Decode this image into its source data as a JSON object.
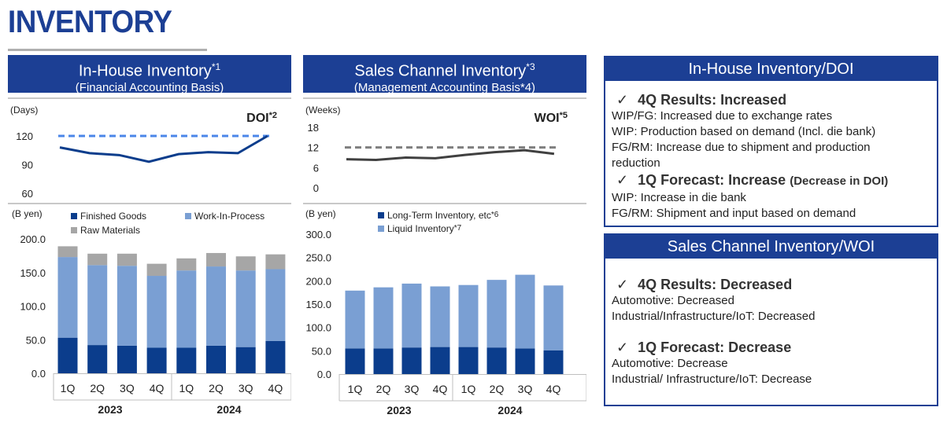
{
  "page_title": "INVENTORY",
  "panels": {
    "inhouse": {
      "title": "In-House Inventory",
      "title_sup": "*1",
      "subtitle": "(Financial Accounting Basis)"
    },
    "sales": {
      "title": "Sales Channel Inventory",
      "title_sup": "*3",
      "subtitle": "(Management Accounting Basis*4)"
    }
  },
  "colors": {
    "navy": "#1c3f94",
    "finished_goods": "#0b3d8c",
    "wip": "#7a9fd3",
    "raw_materials": "#a6a6a6",
    "woi_line": "#404040",
    "dashed_gray": "#7f7f7f",
    "dashed_blue": "#4a86e8"
  },
  "chart_data": [
    {
      "type": "line",
      "label": "DOI",
      "label_sup": "*2",
      "ylabel": "(Days)",
      "yticks": [
        "60",
        "90",
        "120"
      ],
      "ylim": [
        60,
        120
      ],
      "x": [
        "1Q 2023",
        "2Q 2023",
        "3Q 2023",
        "4Q 2023",
        "1Q 2024",
        "2Q 2024",
        "3Q 2024",
        "4Q 2024"
      ],
      "series": [
        {
          "values": [
            108,
            102,
            100,
            93,
            101,
            103,
            102,
            120
          ]
        }
      ],
      "reference_line": 120
    },
    {
      "type": "bar",
      "stacked": true,
      "ylabel": "(B yen)",
      "yticks": [
        "0.0",
        "50.0",
        "100.0",
        "150.0",
        "200.0"
      ],
      "ylim": [
        0,
        200
      ],
      "categories": [
        "1Q",
        "2Q",
        "3Q",
        "4Q",
        "1Q",
        "2Q",
        "3Q",
        "4Q"
      ],
      "groups": [
        "2023",
        "2024"
      ],
      "series": [
        {
          "name": "Finished Goods",
          "values": [
            53,
            42,
            41,
            38,
            38,
            41,
            39,
            48
          ]
        },
        {
          "name": "Work-In-Process",
          "values": [
            120,
            119,
            119,
            107,
            115,
            118,
            114,
            107
          ]
        },
        {
          "name": "Raw Materials",
          "values": [
            16,
            17,
            18,
            18,
            18,
            20,
            21,
            22
          ]
        }
      ]
    },
    {
      "type": "line",
      "label": "WOI",
      "label_sup": "*5",
      "ylabel": "(Weeks)",
      "yticks": [
        "0",
        "6",
        "12",
        "18"
      ],
      "ylim": [
        0,
        18
      ],
      "x": [
        "1Q 2023",
        "2Q 2023",
        "3Q 2023",
        "4Q 2023",
        "1Q 2024",
        "2Q 2024",
        "3Q 2024",
        "4Q 2024"
      ],
      "series": [
        {
          "values": [
            8.5,
            8.3,
            9.0,
            8.8,
            9.8,
            10.6,
            11.2,
            10.1
          ]
        }
      ],
      "reference_line": 12
    },
    {
      "type": "bar",
      "stacked": true,
      "ylabel": "(B yen)",
      "yticks": [
        "0.0",
        "50.0",
        "100.0",
        "150.0",
        "200.0",
        "250.0",
        "300.0"
      ],
      "ylim": [
        0,
        300
      ],
      "categories": [
        "1Q",
        "2Q",
        "3Q",
        "4Q",
        "1Q",
        "2Q",
        "3Q",
        "4Q"
      ],
      "groups": [
        "2023",
        "2024"
      ],
      "series": [
        {
          "name": "Long-Term Inventory, etc",
          "name_sup": "*6",
          "values": [
            55,
            55,
            57,
            58,
            58,
            57,
            55,
            51
          ]
        },
        {
          "name": "Liquid Inventory",
          "name_sup": "*7",
          "values": [
            124,
            131,
            137,
            130,
            133,
            145,
            158,
            139
          ]
        }
      ]
    }
  ],
  "doi_box": {
    "title": "In-House Inventory/DOI",
    "q4_heading": "4Q Results: Increased",
    "q4_lines": [
      "WIP/FG: Increased due to exchange rates",
      "WIP: Production based on demand (Incl. die bank)",
      "FG/RM: Increase due to shipment and production",
      "reduction"
    ],
    "q1_heading": "1Q Forecast: Increase",
    "q1_heading_note": "(Decrease in DOI)",
    "q1_lines": [
      "WIP: Increase in die bank",
      "FG/RM: Shipment and input based on demand"
    ]
  },
  "woi_box": {
    "title": "Sales Channel Inventory/WOI",
    "q4_heading": "4Q Results: Decreased",
    "q4_lines": [
      "Automotive: Decreased",
      "Industrial/Infrastructure/IoT: Decreased"
    ],
    "q1_heading": "1Q Forecast: Decrease",
    "q1_lines": [
      "Automotive: Decrease",
      "Industrial/ Infrastructure/IoT: Decrease"
    ]
  },
  "check_mark": "✓"
}
